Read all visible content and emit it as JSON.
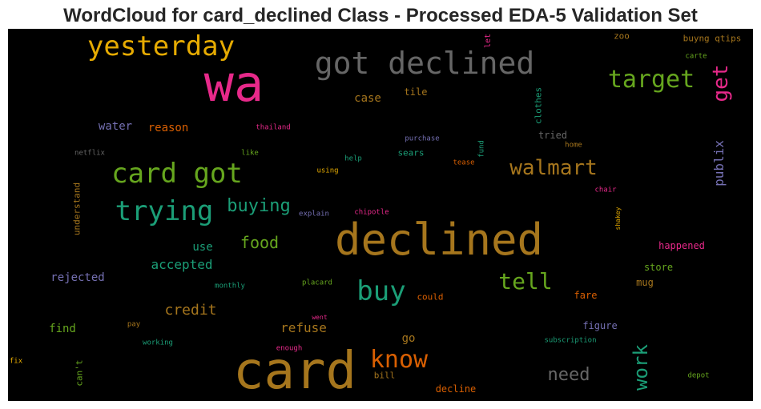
{
  "chart_data": {
    "type": "wordcloud",
    "title": "WordCloud for card_declined Class - Processed EDA-5 Validation Set",
    "background": "#000000",
    "words": [
      {
        "text": "card",
        "color": "#a6761d",
        "v": false
      },
      {
        "text": "declined",
        "color": "#a6761d",
        "v": false
      },
      {
        "text": "wa",
        "color": "#e7298a",
        "v": false
      },
      {
        "text": "got declined",
        "color": "#666666",
        "v": false
      },
      {
        "text": "yesterday",
        "color": "#e6ab02",
        "v": false
      },
      {
        "text": "card got",
        "color": "#66a61e",
        "v": false
      },
      {
        "text": "trying",
        "color": "#1b9e77",
        "v": false
      },
      {
        "text": "walmart",
        "color": "#a6761d",
        "v": false
      },
      {
        "text": "target",
        "color": "#66a61e",
        "v": false
      },
      {
        "text": "get",
        "color": "#e7298a",
        "v": true
      },
      {
        "text": "know",
        "color": "#d95f02",
        "v": false
      },
      {
        "text": "buy",
        "color": "#1b9e77",
        "v": false
      },
      {
        "text": "tell",
        "color": "#66a61e",
        "v": false
      },
      {
        "text": "work",
        "color": "#1b9e77",
        "v": true
      },
      {
        "text": "need",
        "color": "#666666",
        "v": false
      },
      {
        "text": "buying",
        "color": "#1b9e77",
        "v": false
      },
      {
        "text": "food",
        "color": "#66a61e",
        "v": false
      },
      {
        "text": "credit",
        "color": "#a6761d",
        "v": false
      },
      {
        "text": "accepted",
        "color": "#1b9e77",
        "v": false
      },
      {
        "text": "publix",
        "color": "#7570b3",
        "v": true
      },
      {
        "text": "refuse",
        "color": "#a6761d",
        "v": false
      },
      {
        "text": "water",
        "color": "#7570b3",
        "v": false
      },
      {
        "text": "reason",
        "color": "#d95f02",
        "v": false
      },
      {
        "text": "rejected",
        "color": "#7570b3",
        "v": false
      },
      {
        "text": "use",
        "color": "#1b9e77",
        "v": false
      },
      {
        "text": "find",
        "color": "#66a61e",
        "v": false
      },
      {
        "text": "go",
        "color": "#a6761d",
        "v": false
      },
      {
        "text": "case",
        "color": "#a6761d",
        "v": false
      },
      {
        "text": "tile",
        "color": "#a6761d",
        "v": false
      },
      {
        "text": "clothes",
        "color": "#1b9e77",
        "v": true
      },
      {
        "text": "tried",
        "color": "#666666",
        "v": false
      },
      {
        "text": "sears",
        "color": "#1b9e77",
        "v": false
      },
      {
        "text": "zoo",
        "color": "#a6761d",
        "v": false
      },
      {
        "text": "buyng qtips",
        "color": "#a6761d",
        "v": false
      },
      {
        "text": "carte",
        "color": "#66a61e",
        "v": false
      },
      {
        "text": "let",
        "color": "#e7298a",
        "v": true
      },
      {
        "text": "thailand",
        "color": "#e7298a",
        "v": false
      },
      {
        "text": "purchase",
        "color": "#7570b3",
        "v": false
      },
      {
        "text": "fund",
        "color": "#1b9e77",
        "v": true
      },
      {
        "text": "home",
        "color": "#a6761d",
        "v": false
      },
      {
        "text": "netflix",
        "color": "#666666",
        "v": false
      },
      {
        "text": "like",
        "color": "#66a61e",
        "v": false
      },
      {
        "text": "help",
        "color": "#1b9e77",
        "v": false
      },
      {
        "text": "tease",
        "color": "#d95f02",
        "v": false
      },
      {
        "text": "using",
        "color": "#e6ab02",
        "v": false
      },
      {
        "text": "chair",
        "color": "#e7298a",
        "v": false
      },
      {
        "text": "understand",
        "color": "#a6761d",
        "v": true
      },
      {
        "text": "explain",
        "color": "#7570b3",
        "v": false
      },
      {
        "text": "chipotle",
        "color": "#e7298a",
        "v": false
      },
      {
        "text": "shakey",
        "color": "#e6ab02",
        "v": true
      },
      {
        "text": "happened",
        "color": "#e7298a",
        "v": false
      },
      {
        "text": "store",
        "color": "#66a61e",
        "v": false
      },
      {
        "text": "mug",
        "color": "#a6761d",
        "v": false
      },
      {
        "text": "monthly",
        "color": "#1b9e77",
        "v": false
      },
      {
        "text": "placard",
        "color": "#66a61e",
        "v": false
      },
      {
        "text": "could",
        "color": "#d95f02",
        "v": false
      },
      {
        "text": "fare",
        "color": "#d95f02",
        "v": false
      },
      {
        "text": "figure",
        "color": "#7570b3",
        "v": false
      },
      {
        "text": "went",
        "color": "#e7298a",
        "v": false
      },
      {
        "text": "pay",
        "color": "#a6761d",
        "v": false
      },
      {
        "text": "working",
        "color": "#1b9e77",
        "v": false
      },
      {
        "text": "enough",
        "color": "#e7298a",
        "v": false
      },
      {
        "text": "subscription",
        "color": "#1b9e77",
        "v": false
      },
      {
        "text": "fix",
        "color": "#e6ab02",
        "v": false
      },
      {
        "text": "can't",
        "color": "#66a61e",
        "v": true
      },
      {
        "text": "bill",
        "color": "#a6761d",
        "v": false
      },
      {
        "text": "decline",
        "color": "#d95f02",
        "v": false
      },
      {
        "text": "depot",
        "color": "#66a61e",
        "v": false
      }
    ]
  }
}
